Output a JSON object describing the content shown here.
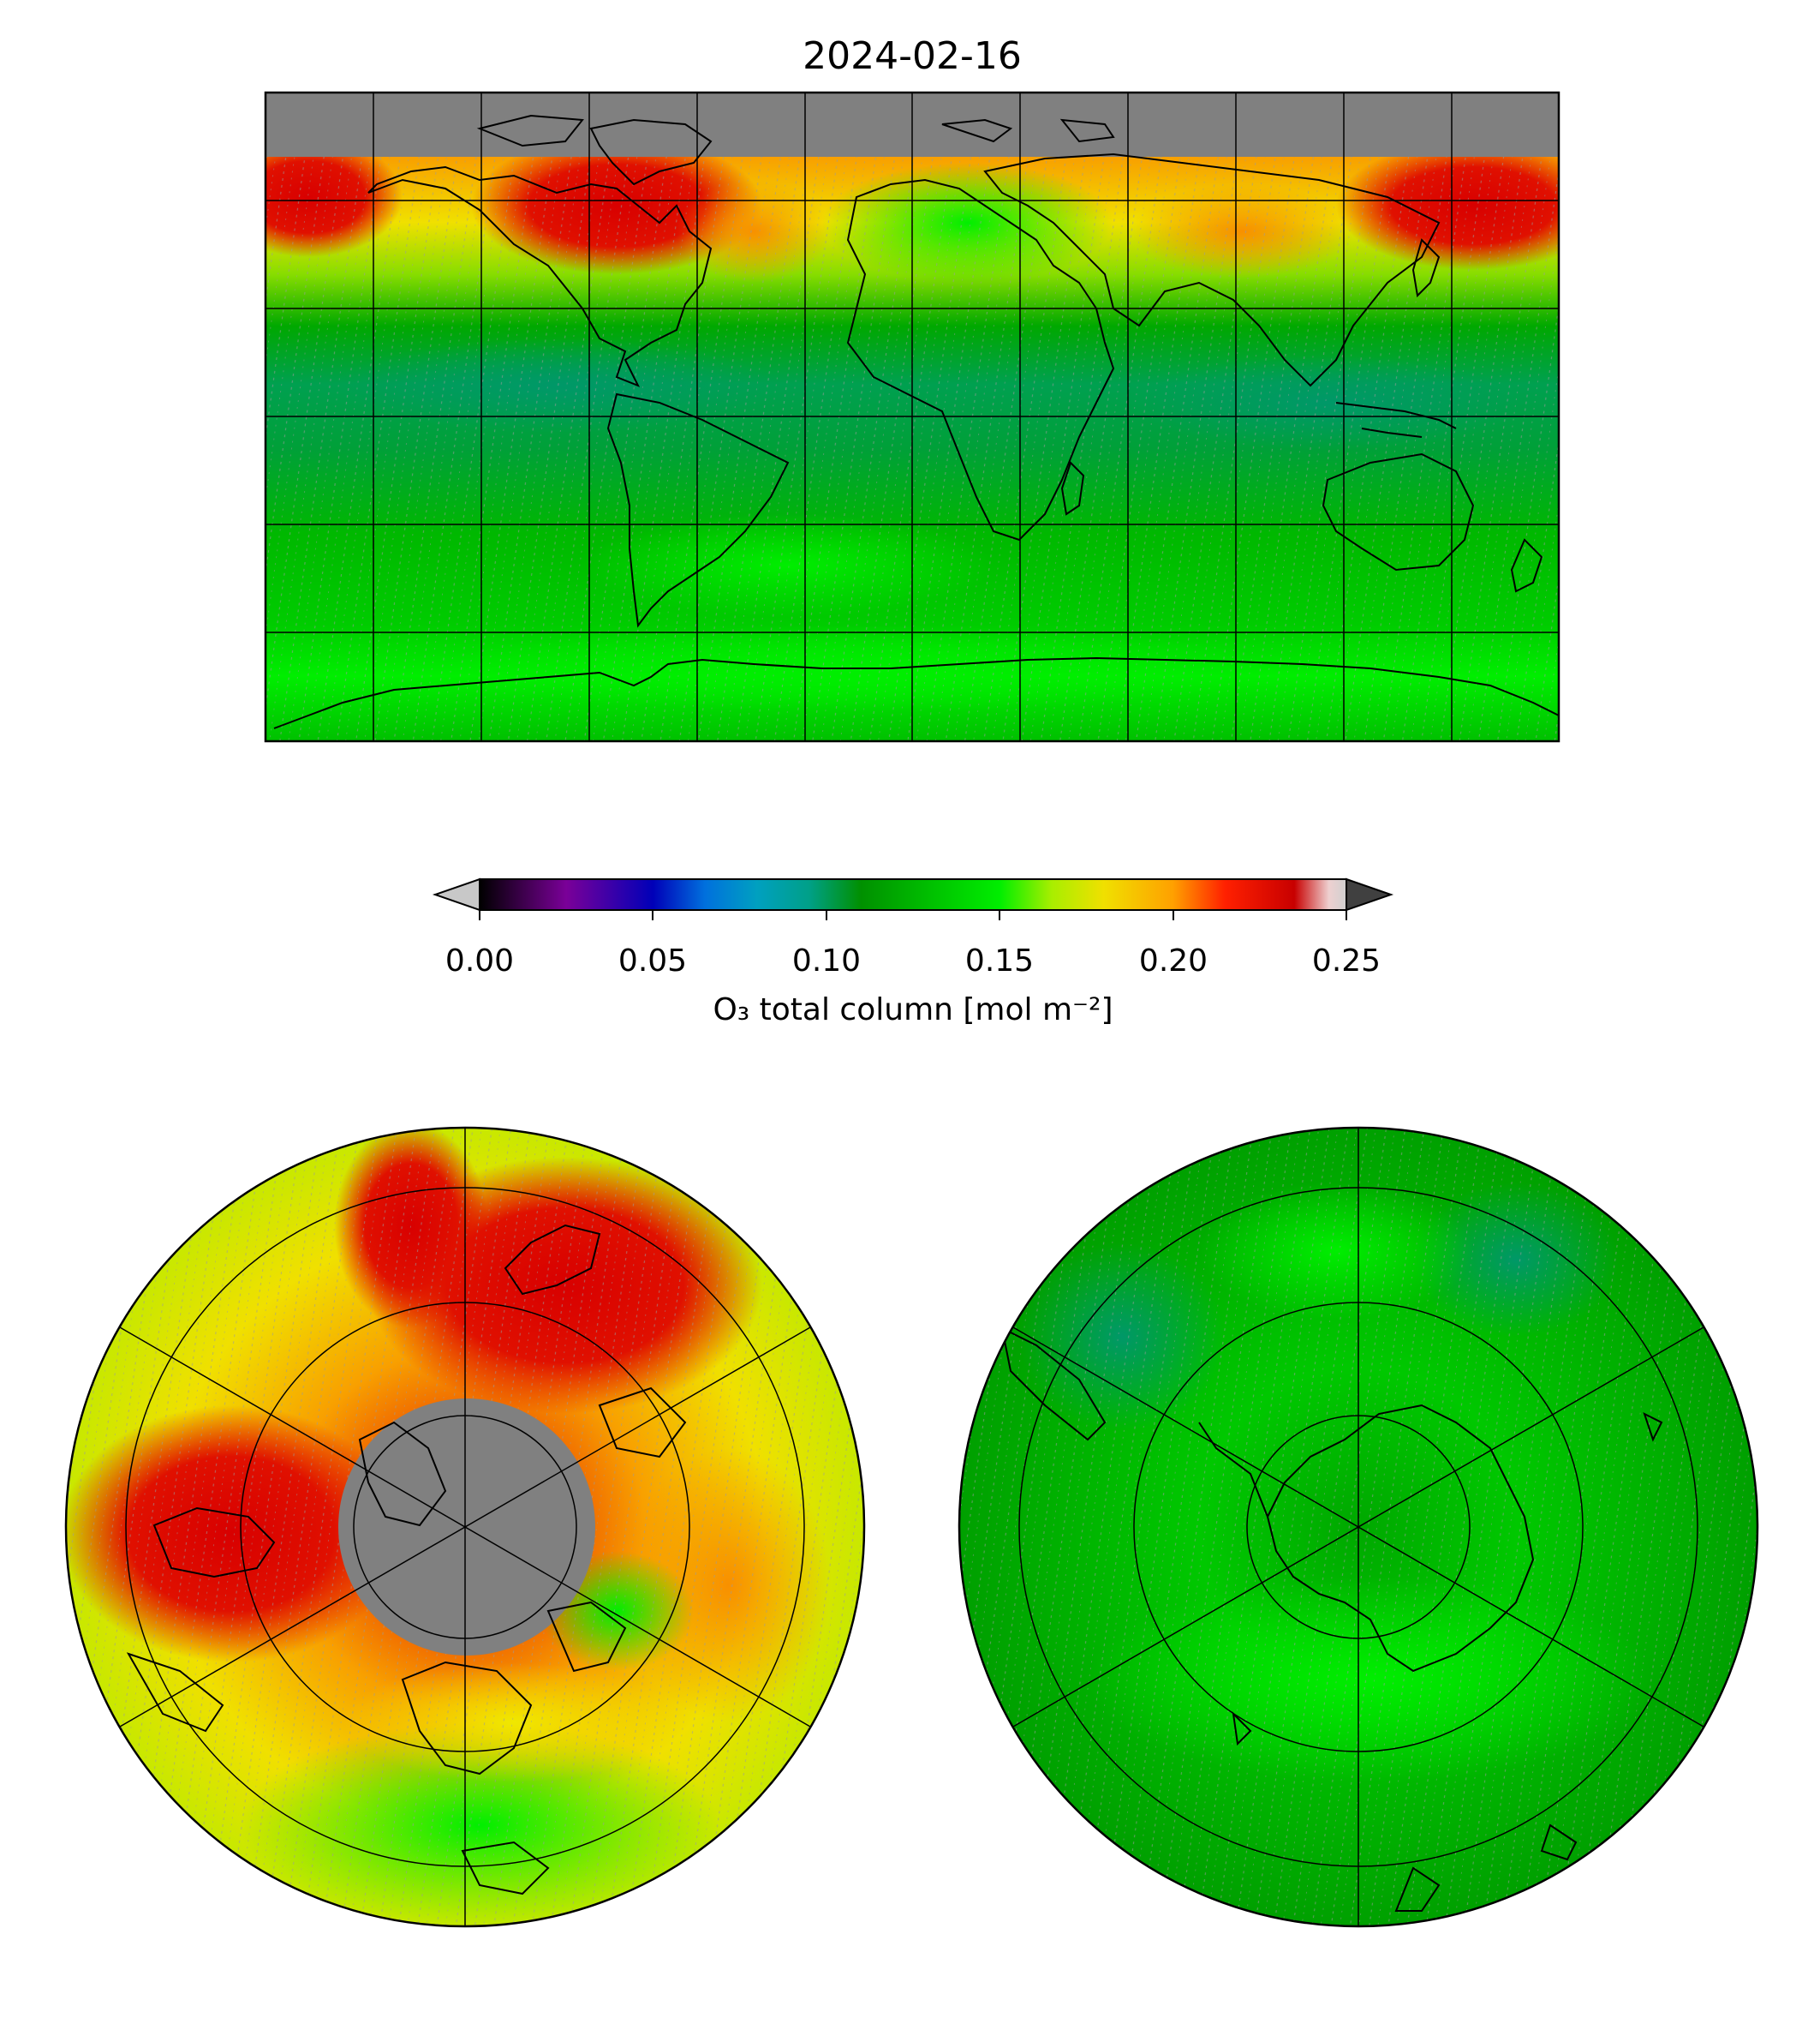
{
  "title": "2024-02-16",
  "colorbar": {
    "label": "O₃ total column [mol m⁻²]",
    "ticks": [
      "0.00",
      "0.05",
      "0.10",
      "0.15",
      "0.20",
      "0.25"
    ],
    "range": [
      0.0,
      0.25
    ],
    "extend": "both",
    "under_color": "#c8c8c8",
    "over_color": "#404040",
    "stops": [
      {
        "value": 0.0,
        "color": "#000000"
      },
      {
        "value": 0.025,
        "color": "#7a0098"
      },
      {
        "value": 0.05,
        "color": "#0000b8"
      },
      {
        "value": 0.065,
        "color": "#0070dd"
      },
      {
        "value": 0.08,
        "color": "#00a0c0"
      },
      {
        "value": 0.095,
        "color": "#00a088"
      },
      {
        "value": 0.11,
        "color": "#009000"
      },
      {
        "value": 0.13,
        "color": "#00c000"
      },
      {
        "value": 0.15,
        "color": "#00ee00"
      },
      {
        "value": 0.165,
        "color": "#a8ee00"
      },
      {
        "value": 0.18,
        "color": "#f0e000"
      },
      {
        "value": 0.2,
        "color": "#ffa000"
      },
      {
        "value": 0.215,
        "color": "#ff2000"
      },
      {
        "value": 0.235,
        "color": "#c80000"
      },
      {
        "value": 0.245,
        "color": "#eed0d0"
      },
      {
        "value": 0.25,
        "color": "#d0d0d0"
      }
    ]
  },
  "colors": {
    "no_data": "#808080",
    "high_ozone": "#e00000",
    "elevated": "#f8a000",
    "moderate": "#f0e000",
    "typical": "#00b800",
    "low": "#00a050"
  },
  "maps": {
    "global": {
      "projection": "equirectangular",
      "extent_lon": [
        -180,
        180
      ],
      "extent_lat": [
        -90,
        90
      ],
      "gridline_step_deg": 30
    },
    "north_polar": {
      "projection": "north-polar-stereographic",
      "boundary_lat": 0
    },
    "south_polar": {
      "projection": "south-polar-stereographic",
      "boundary_lat": 0
    }
  }
}
